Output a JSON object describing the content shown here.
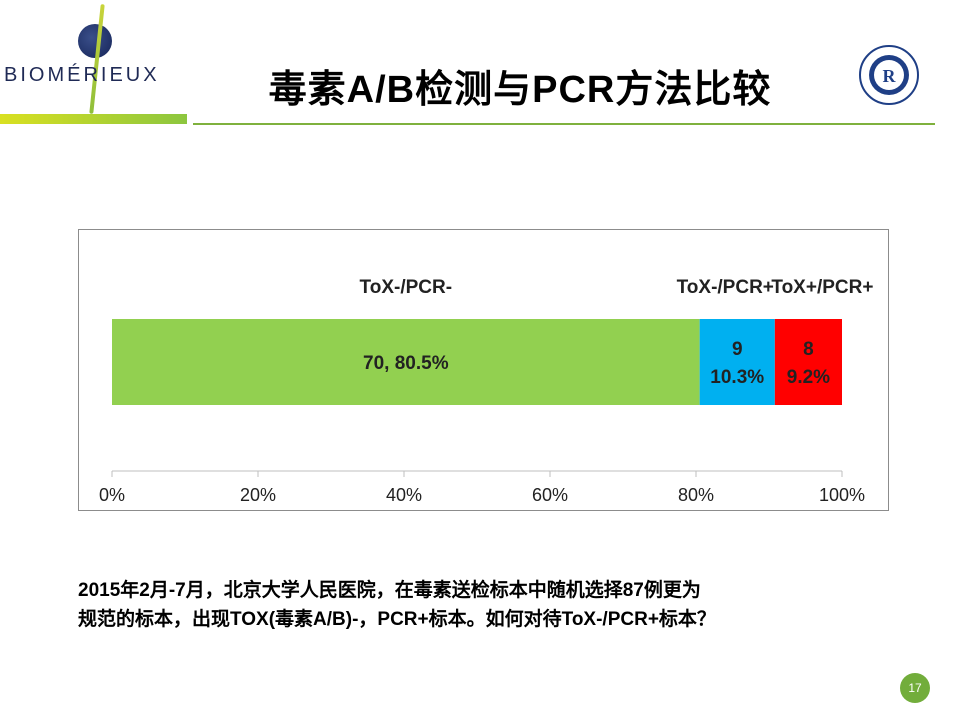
{
  "header": {
    "logo_text": "BIOMÉRIEUX",
    "title": "毒素A/B检测与PCR方法比较",
    "seal_icon": "hospital-seal-icon"
  },
  "chart_data": {
    "type": "bar",
    "orientation": "horizontal",
    "stacked": true,
    "percent_stacked": true,
    "categories": [
      ""
    ],
    "series": [
      {
        "name": "ToX-/PCR-",
        "values": [
          70
        ],
        "percent": [
          80.5
        ],
        "label": "70, 80.5%",
        "color": "#92d050"
      },
      {
        "name": "ToX-/PCR+",
        "values": [
          9
        ],
        "percent": [
          10.3
        ],
        "label_lines": [
          "9",
          "10.3%"
        ],
        "color": "#00b0f0"
      },
      {
        "name": "ToX+/PCR+",
        "values": [
          8
        ],
        "percent": [
          9.2
        ],
        "label_lines": [
          "8",
          "9.2%"
        ],
        "color": "#ff0000"
      }
    ],
    "xlim": [
      0,
      100
    ],
    "xticks": [
      "0%",
      "20%",
      "40%",
      "60%",
      "80%",
      "100%"
    ],
    "grid": false,
    "legend": "none"
  },
  "caption": {
    "line1": "2015年2月-7月，北京大学人民医院，在毒素送检标本中随机选择87例更为",
    "line2": "规范的标本，出现TOX(毒素A/B)-，PCR+标本。如何对待ToX-/PCR+标本？"
  },
  "footer": {
    "page_number": "17",
    "accent": "#72ad3b"
  }
}
